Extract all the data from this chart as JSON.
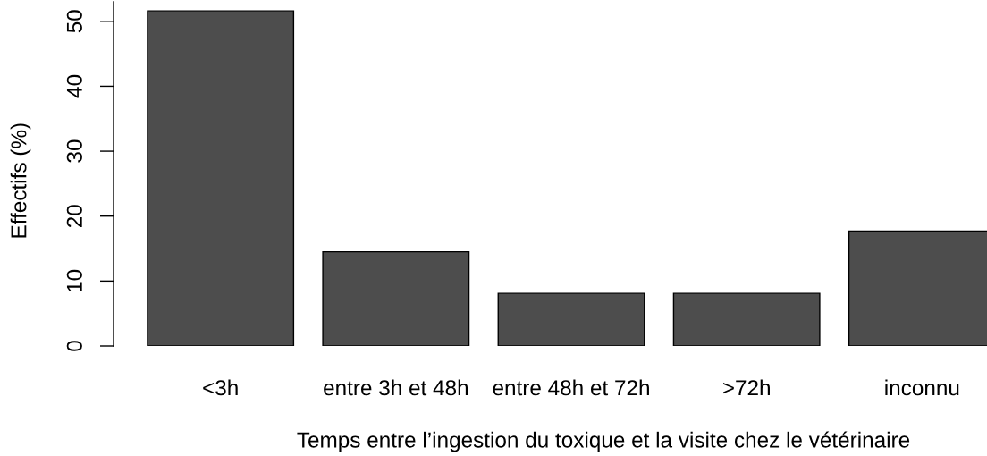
{
  "chart_data": {
    "type": "bar",
    "xlabel": "Temps entre l’ingestion du toxique et la visite chez le vétérinaire",
    "ylabel": "Effectifs (%)",
    "categories": [
      "<3h",
      "entre 3h et 48h",
      "entre 48h et 72h",
      ">72h",
      "inconnu"
    ],
    "values": [
      51.6,
      14.5,
      8.1,
      8.1,
      17.7
    ],
    "color": "#4d4d4d",
    "ylim": [
      0,
      53
    ],
    "yticks": [
      0,
      10,
      20,
      30,
      40,
      50
    ]
  }
}
